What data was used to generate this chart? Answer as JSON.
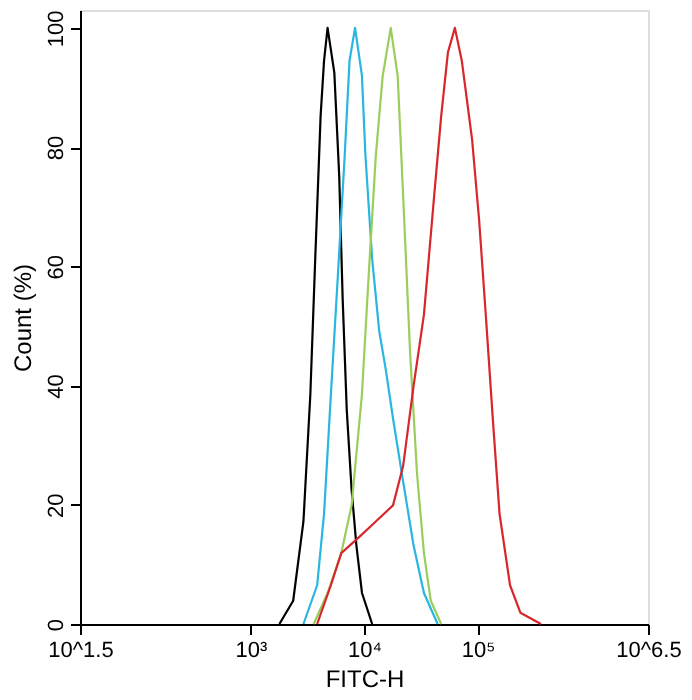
{
  "chart_data": {
    "type": "line",
    "xlabel": "FITC-H",
    "ylabel": "Count (%)",
    "log": "x",
    "xlim": [
      31.6228,
      3162278
    ],
    "ylim": [
      0,
      103
    ],
    "xticks": [
      {
        "value": 31.6228,
        "label": "10^1.5"
      },
      {
        "value": 1000,
        "label": "10³"
      },
      {
        "value": 10000,
        "label": "10⁴"
      },
      {
        "value": 100000,
        "label": "10⁵"
      },
      {
        "value": 3162278,
        "label": "10^6.5"
      }
    ],
    "yticks": [
      0,
      20,
      40,
      60,
      80,
      100
    ],
    "grid": false,
    "legend": false,
    "marker": "none",
    "line_style": "solid",
    "series": [
      {
        "color": "#000000",
        "x": [
          1800,
          2380,
          2930,
          3370,
          3720,
          4150,
          4450,
          4780,
          5480,
          6050,
          6490,
          7050,
          7780,
          8570,
          9600,
          11800
        ],
        "values": [
          0,
          3.9,
          17.2,
          38.5,
          61.2,
          85.2,
          94.5,
          100,
          92.5,
          75.2,
          54.5,
          35.9,
          22.5,
          13.2,
          5.2,
          0
        ]
      },
      {
        "color": "#29b6e0",
        "x": [
          2930,
          3870,
          4450,
          5110,
          5890,
          6760,
          7460,
          8340,
          9590,
          10300,
          11800,
          13600,
          15600,
          18000,
          22100,
          27300,
          33700,
          44500
        ],
        "values": [
          0,
          6.5,
          18.5,
          38.5,
          58.5,
          78.5,
          94.5,
          100,
          92,
          78.5,
          61.2,
          49.2,
          42.5,
          34.5,
          23.9,
          13.2,
          5.2,
          0
        ]
      },
      {
        "color": "#9acd5a",
        "x": [
          3610,
          4780,
          6310,
          7780,
          9590,
          11000,
          12700,
          14600,
          17200,
          19800,
          22100,
          25500,
          29300,
          33700,
          38700,
          47800
        ],
        "values": [
          0,
          5.2,
          11.9,
          19.9,
          38.5,
          58.5,
          78.5,
          91.9,
          100,
          91.9,
          71.9,
          45.2,
          25.2,
          11.9,
          3.9,
          0
        ]
      },
      {
        "color": "#d9262b",
        "x": [
          3870,
          5110,
          6310,
          8950,
          12700,
          18000,
          22100,
          27300,
          33700,
          41500,
          47800,
          54800,
          63100,
          72600,
          89500,
          103000,
          118000,
          136000,
          156000,
          193000,
          238000,
          361000
        ],
        "values": [
          0,
          6.5,
          11.9,
          14.5,
          17.2,
          19.9,
          26.5,
          39.9,
          51.9,
          71.9,
          85.2,
          95.9,
          100,
          94.5,
          81.2,
          67.9,
          51.9,
          34.5,
          18.5,
          6.5,
          1.9,
          0
        ]
      }
    ]
  }
}
